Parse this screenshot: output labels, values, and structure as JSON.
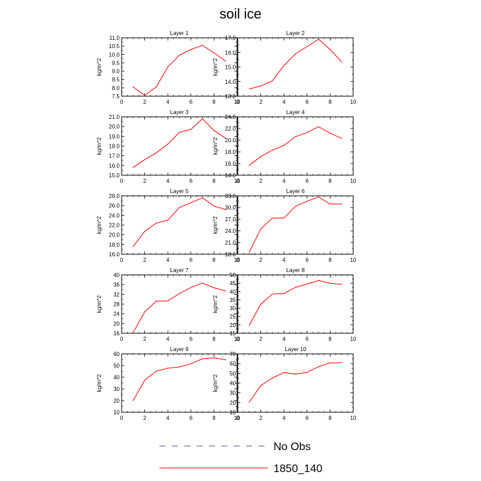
{
  "figure": {
    "title": "soil ice",
    "line_color": "#ff0000"
  },
  "legend": {
    "entries": [
      {
        "label": "No Obs",
        "style": "dashed",
        "color": "#5555aa"
      },
      {
        "label": "1850_140",
        "style": "solid",
        "color": "#ff0000"
      }
    ]
  },
  "chart_data": [
    {
      "type": "line",
      "title": "Layer 1",
      "ylabel": "kg/m^2",
      "xlim": [
        0,
        10
      ],
      "xticks": [
        0,
        2,
        4,
        6,
        8,
        10
      ],
      "ylim": [
        7.5,
        11.0
      ],
      "yticks": [
        "7.5",
        "8.0",
        "8.5",
        "9.0",
        "9.5",
        "10.0",
        "10.5",
        "11.0"
      ],
      "series": [
        {
          "x": [
            1,
            2,
            3,
            4,
            5,
            6,
            7,
            8,
            9
          ],
          "y": [
            8.05,
            7.55,
            8.05,
            9.25,
            9.95,
            10.3,
            10.55,
            10.1,
            9.6
          ]
        }
      ]
    },
    {
      "type": "line",
      "title": "Layer 2",
      "ylabel": "kg/m^2",
      "xlim": [
        0,
        10
      ],
      "xticks": [
        0,
        2,
        4,
        6,
        8,
        10
      ],
      "ylim": [
        13.0,
        17.0
      ],
      "yticks": [
        "13.0",
        "14.0",
        "15.0",
        "16.0",
        "17.0"
      ],
      "series": [
        {
          "x": [
            1,
            2,
            3,
            4,
            5,
            6,
            7,
            8,
            9
          ],
          "y": [
            13.5,
            13.7,
            14.05,
            15.1,
            15.9,
            16.4,
            16.9,
            16.2,
            15.35
          ]
        }
      ]
    },
    {
      "type": "line",
      "title": "Layer 3",
      "ylabel": "kg/m^2",
      "xlim": [
        0,
        10
      ],
      "xticks": [
        0,
        2,
        4,
        6,
        8,
        10
      ],
      "ylim": [
        15.0,
        21.0
      ],
      "yticks": [
        "15.0",
        "16.0",
        "17.0",
        "18.0",
        "19.0",
        "20.0",
        "21.0"
      ],
      "series": [
        {
          "x": [
            1,
            2,
            3,
            4,
            5,
            6,
            7,
            8,
            9
          ],
          "y": [
            15.8,
            16.6,
            17.3,
            18.2,
            19.4,
            19.7,
            20.8,
            19.6,
            18.8
          ]
        }
      ]
    },
    {
      "type": "line",
      "title": "Layer 4",
      "ylabel": "kg/m^2",
      "xlim": [
        0,
        10
      ],
      "xticks": [
        0,
        2,
        4,
        6,
        8,
        10
      ],
      "ylim": [
        14.0,
        24.0
      ],
      "yticks": [
        "14.0",
        "16.0",
        "18.0",
        "20.0",
        "22.0",
        "24.0"
      ],
      "series": [
        {
          "x": [
            1,
            2,
            3,
            4,
            5,
            6,
            7,
            8,
            9
          ],
          "y": [
            15.7,
            17.2,
            18.3,
            19.1,
            20.6,
            21.3,
            22.3,
            21.2,
            20.3
          ]
        }
      ]
    },
    {
      "type": "line",
      "title": "Layer 5",
      "ylabel": "kg/m^2",
      "xlim": [
        0,
        10
      ],
      "xticks": [
        0,
        2,
        4,
        6,
        8,
        10
      ],
      "ylim": [
        16.0,
        28.0
      ],
      "yticks": [
        "16.0",
        "18.0",
        "20.0",
        "22.0",
        "24.0",
        "26.0",
        "28.0"
      ],
      "series": [
        {
          "x": [
            1,
            2,
            3,
            4,
            5,
            6,
            7,
            8,
            9
          ],
          "y": [
            17.6,
            20.7,
            22.4,
            23.0,
            25.6,
            26.6,
            27.6,
            25.9,
            25.2
          ]
        }
      ]
    },
    {
      "type": "line",
      "title": "Layer 6",
      "ylabel": "kg/m^2",
      "xlim": [
        0,
        10
      ],
      "xticks": [
        0,
        2,
        4,
        6,
        8,
        10
      ],
      "ylim": [
        18.0,
        33.0
      ],
      "yticks": [
        "18.0",
        "21.0",
        "24.0",
        "27.0",
        "30.0",
        "33.0"
      ],
      "series": [
        {
          "x": [
            1,
            2,
            3,
            4,
            5,
            6,
            7,
            8,
            9
          ],
          "y": [
            18.6,
            24.5,
            27.3,
            27.3,
            30.3,
            31.6,
            32.7,
            30.9,
            30.9
          ]
        }
      ]
    },
    {
      "type": "line",
      "title": "Layer 7",
      "ylabel": "kg/m^2",
      "xlim": [
        0,
        10
      ],
      "xticks": [
        0,
        2,
        4,
        6,
        8,
        10
      ],
      "ylim": [
        16,
        40
      ],
      "yticks": [
        "16",
        "20",
        "24",
        "28",
        "32",
        "36",
        "40"
      ],
      "series": [
        {
          "x": [
            1,
            2,
            3,
            4,
            5,
            6,
            7,
            8,
            9
          ],
          "y": [
            16.3,
            24.8,
            29.2,
            29.3,
            32.3,
            34.8,
            36.6,
            34.7,
            33.4
          ]
        }
      ]
    },
    {
      "type": "line",
      "title": "Layer 8",
      "ylabel": "kg/m^2",
      "xlim": [
        0,
        10
      ],
      "xticks": [
        0,
        2,
        4,
        6,
        8,
        10
      ],
      "ylim": [
        15,
        50
      ],
      "yticks": [
        "15",
        "20",
        "25",
        "30",
        "35",
        "40",
        "45",
        "50"
      ],
      "series": [
        {
          "x": [
            1,
            2,
            3,
            4,
            5,
            6,
            7,
            8,
            9
          ],
          "y": [
            19.8,
            32.5,
            38.5,
            38.8,
            42.5,
            44.5,
            46.6,
            45.0,
            44.3
          ]
        }
      ]
    },
    {
      "type": "line",
      "title": "Layer 9",
      "ylabel": "kg/m^2",
      "xlim": [
        0,
        10
      ],
      "xticks": [
        0,
        2,
        4,
        6,
        8,
        10
      ],
      "ylim": [
        10,
        60
      ],
      "yticks": [
        "10",
        "20",
        "30",
        "40",
        "50",
        "60"
      ],
      "series": [
        {
          "x": [
            1,
            2,
            3,
            4,
            5,
            6,
            7,
            8,
            9
          ],
          "y": [
            20.0,
            37.5,
            45.2,
            47.8,
            48.8,
            51.5,
            55.8,
            56.6,
            55.0
          ]
        }
      ]
    },
    {
      "type": "line",
      "title": "Layer 10",
      "ylabel": "kg/m^2",
      "xlim": [
        0,
        10
      ],
      "xticks": [
        0,
        2,
        4,
        6,
        8,
        10
      ],
      "ylim": [
        10,
        70
      ],
      "yticks": [
        "10",
        "20",
        "30",
        "40",
        "50",
        "60",
        "70"
      ],
      "series": [
        {
          "x": [
            1,
            2,
            3,
            4,
            5,
            6,
            7,
            8,
            9
          ],
          "y": [
            20.5,
            37.5,
            45.2,
            50.8,
            49.3,
            51.0,
            56.8,
            60.7,
            61.0
          ]
        }
      ]
    }
  ]
}
